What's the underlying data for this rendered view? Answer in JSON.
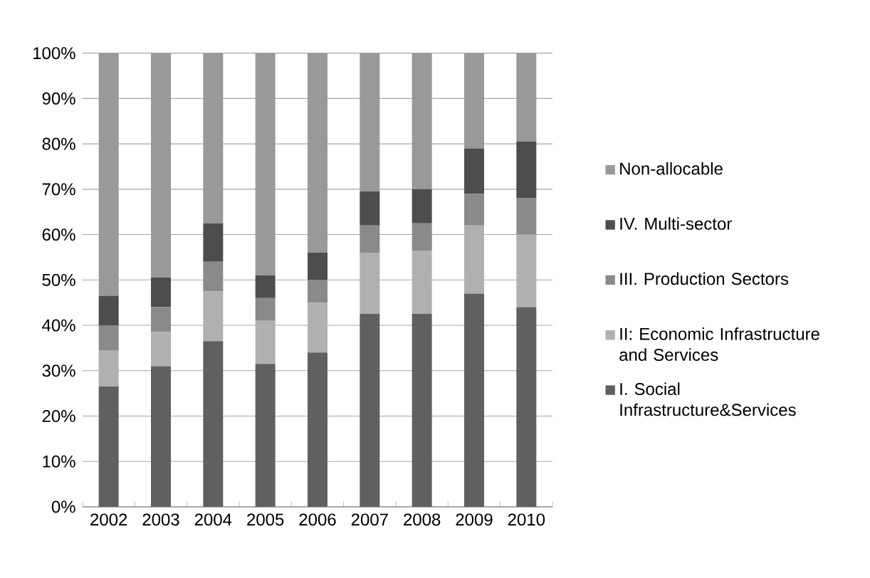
{
  "chart_data": {
    "type": "bar",
    "stacked": true,
    "categories": [
      "2002",
      "2003",
      "2004",
      "2005",
      "2006",
      "2007",
      "2008",
      "2009",
      "2010"
    ],
    "series": [
      {
        "name": "I. Social Infrastructure&Services",
        "color": "#606060",
        "values": [
          26.5,
          31,
          36.5,
          31.5,
          34,
          42.5,
          42.5,
          47,
          44
        ]
      },
      {
        "name": "II: Economic Infrastructure and Services",
        "color": "#b0b0b0",
        "values": [
          8,
          7.5,
          11,
          9.5,
          11,
          13.5,
          14,
          15,
          16
        ]
      },
      {
        "name": "III. Production Sectors",
        "color": "#8a8a8a",
        "values": [
          5.5,
          5.5,
          6.5,
          5,
          5,
          6,
          6,
          7,
          8
        ]
      },
      {
        "name": "IV. Multi-sector",
        "color": "#4d4d4d",
        "values": [
          6.5,
          6.5,
          8.5,
          5,
          6,
          7.5,
          7.5,
          10,
          12.5
        ]
      },
      {
        "name": "Non-allocable",
        "color": "#999999",
        "values": [
          53.5,
          49.5,
          37.5,
          49,
          44,
          30.5,
          30,
          21,
          19.5
        ]
      }
    ],
    "ylim": [
      0,
      100
    ],
    "yticks": [
      {
        "value": 0,
        "label": "0%"
      },
      {
        "value": 10,
        "label": "10%"
      },
      {
        "value": 20,
        "label": "20%"
      },
      {
        "value": 30,
        "label": "30%"
      },
      {
        "value": 40,
        "label": "40%"
      },
      {
        "value": 50,
        "label": "50%"
      },
      {
        "value": 60,
        "label": "60%"
      },
      {
        "value": 70,
        "label": "70%"
      },
      {
        "value": 80,
        "label": "80%"
      },
      {
        "value": 90,
        "label": "90%"
      },
      {
        "value": 100,
        "label": "100%"
      }
    ],
    "grid": "y",
    "legend": "right"
  }
}
